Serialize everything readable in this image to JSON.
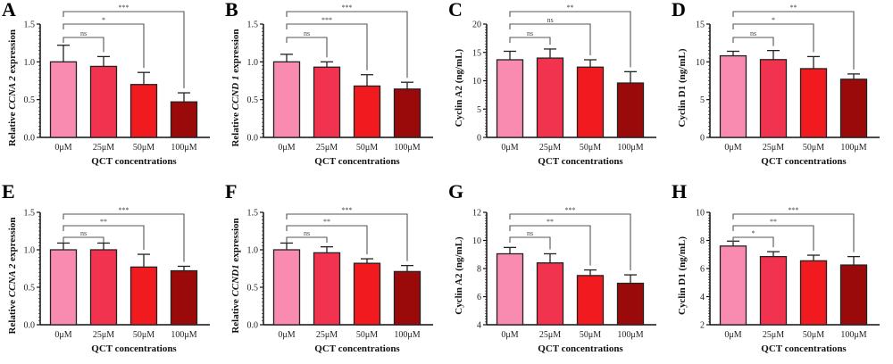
{
  "colors": [
    "#f98bb0",
    "#f2334f",
    "#f01a1f",
    "#9b0a0a"
  ],
  "bracket_color": "#555555",
  "chart_data": [
    {
      "panel": "A",
      "type": "bar",
      "categories": [
        "0μM",
        "25μM",
        "50μM",
        "100μM"
      ],
      "values": [
        1.0,
        0.94,
        0.7,
        0.47
      ],
      "errors": [
        0.22,
        0.13,
        0.16,
        0.12
      ],
      "ylim": [
        0,
        1.5
      ],
      "yticks": [
        "0.0",
        "0.5",
        "1.0",
        "1.5"
      ],
      "ylabel": {
        "pre": "Relative ",
        "it": "CCNA 2",
        "post": " expression"
      },
      "xlabel": "QCT concentrations",
      "significance": [
        "ns",
        "*",
        "***"
      ]
    },
    {
      "panel": "B",
      "type": "bar",
      "categories": [
        "0μM",
        "25μM",
        "50μM",
        "100μM"
      ],
      "values": [
        1.0,
        0.93,
        0.68,
        0.64
      ],
      "errors": [
        0.1,
        0.07,
        0.15,
        0.09
      ],
      "ylim": [
        0,
        1.5
      ],
      "yticks": [
        "0.0",
        "0.5",
        "1.0",
        "1.5"
      ],
      "ylabel": {
        "pre": "Relative ",
        "it": "CCND 1",
        "post": " expression"
      },
      "xlabel": "QCT concentrations",
      "significance": [
        "ns",
        "***",
        "***"
      ]
    },
    {
      "panel": "C",
      "type": "bar",
      "categories": [
        "0μM",
        "25μM",
        "50μM",
        "100μM"
      ],
      "values": [
        13.7,
        14.0,
        12.4,
        9.6
      ],
      "errors": [
        1.5,
        1.6,
        1.3,
        2.0
      ],
      "ylim": [
        0,
        20
      ],
      "yticks": [
        "0",
        "5",
        "10",
        "15",
        "20"
      ],
      "ylabel": {
        "pre": "Cyclin A2 (ng/mL)",
        "it": "",
        "post": ""
      },
      "xlabel": "QCT concentrations",
      "significance": [
        "ns",
        "ns",
        "**"
      ]
    },
    {
      "panel": "D",
      "type": "bar",
      "categories": [
        "0μM",
        "25μM",
        "50μM",
        "100μM"
      ],
      "values": [
        10.8,
        10.3,
        9.1,
        7.7
      ],
      "errors": [
        0.6,
        1.2,
        1.6,
        0.7
      ],
      "ylim": [
        0,
        15
      ],
      "yticks": [
        "0",
        "5",
        "10",
        "15"
      ],
      "ylabel": {
        "pre": "Cyclin D1 (ng/mL)",
        "it": "",
        "post": ""
      },
      "xlabel": "QCT concentrations",
      "significance": [
        "ns",
        "*",
        "**"
      ]
    },
    {
      "panel": "E",
      "type": "bar",
      "categories": [
        "0μM",
        "25μM",
        "50μM",
        "100μM"
      ],
      "values": [
        1.0,
        1.0,
        0.77,
        0.72
      ],
      "errors": [
        0.09,
        0.09,
        0.17,
        0.06
      ],
      "ylim": [
        0,
        1.5
      ],
      "yticks": [
        "0.0",
        "0.5",
        "1.0",
        "1.5"
      ],
      "ylabel": {
        "pre": "Relative ",
        "it": "CCNA 2",
        "post": " expression"
      },
      "xlabel": "QCT concentrations",
      "significance": [
        "ns",
        "**",
        "***"
      ]
    },
    {
      "panel": "F",
      "type": "bar",
      "categories": [
        "0μM",
        "25μM",
        "50μM",
        "100μM"
      ],
      "values": [
        1.0,
        0.96,
        0.82,
        0.71
      ],
      "errors": [
        0.09,
        0.08,
        0.06,
        0.08
      ],
      "ylim": [
        0,
        1.5
      ],
      "yticks": [
        "0.0",
        "0.5",
        "1.0",
        "1.5"
      ],
      "ylabel": {
        "pre": "Relative ",
        "it": "CCND1",
        "post": " expression"
      },
      "xlabel": "QCT concentrations",
      "significance": [
        "ns",
        "**",
        "***"
      ]
    },
    {
      "panel": "G",
      "type": "bar",
      "categories": [
        "0μM",
        "25μM",
        "50μM",
        "100μM"
      ],
      "values": [
        9.05,
        8.4,
        7.5,
        6.95
      ],
      "errors": [
        0.45,
        0.65,
        0.4,
        0.6
      ],
      "ylim": [
        4,
        12
      ],
      "yticks": [
        "4",
        "6",
        "8",
        "10",
        "12"
      ],
      "ylabel": {
        "pre": "Cyclin A2 (ng/mL)",
        "it": "",
        "post": ""
      },
      "xlabel": "QCT concentrations",
      "significance": [
        "ns",
        "**",
        "***"
      ]
    },
    {
      "panel": "H",
      "type": "bar",
      "categories": [
        "0μM",
        "25μM",
        "50μM",
        "100μM"
      ],
      "values": [
        7.6,
        6.85,
        6.55,
        6.25
      ],
      "errors": [
        0.35,
        0.35,
        0.4,
        0.6
      ],
      "ylim": [
        2,
        10
      ],
      "yticks": [
        "2",
        "4",
        "6",
        "8",
        "10"
      ],
      "ylabel": {
        "pre": "Cyclin D1 (ng/mL)",
        "it": "",
        "post": ""
      },
      "xlabel": "QCT concentrations",
      "significance": [
        "*",
        "**",
        "***"
      ]
    }
  ]
}
